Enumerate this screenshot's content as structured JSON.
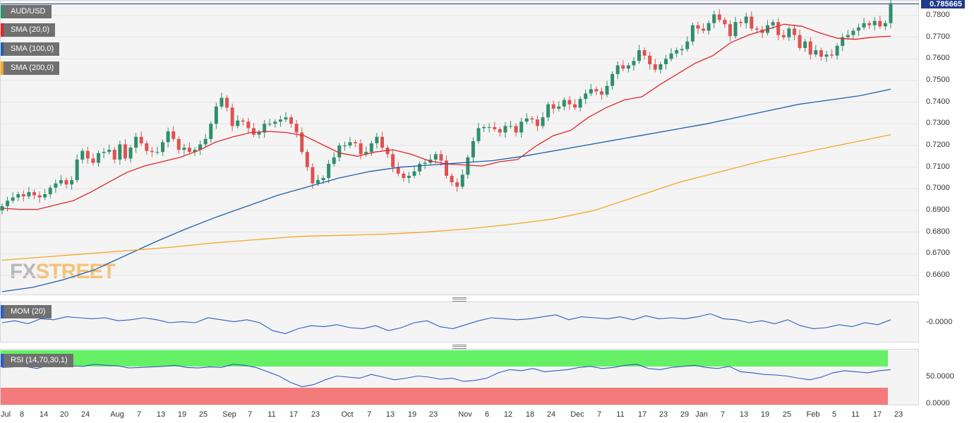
{
  "legend": {
    "symbol": "AUD/USD",
    "sma20": "SMA (20,0)",
    "sma100": "SMA (100,0)",
    "sma200": "SMA (200,0)",
    "mom": "MOM (20)",
    "rsi": "RSI (14,70,30,1)"
  },
  "watermark": {
    "part1": "FX",
    "part2": "STREET"
  },
  "last_price": "0.785665",
  "colors": {
    "up": "#2f8f6b",
    "down": "#e05151",
    "sma20": "#e4242b",
    "sma100": "#1f5fae",
    "sma200": "#f5a623",
    "mom": "#2c5cc5",
    "rsi": "#2c5cc5",
    "rsi_overbought": "#66f066",
    "rsi_oversold": "#f47b7b",
    "price_line": "#1e3a8a"
  },
  "y_ticks": [
    "0.7800",
    "0.7700",
    "0.7600",
    "0.7500",
    "0.7400",
    "0.7300",
    "0.7200",
    "0.7100",
    "0.7000",
    "0.6900",
    "0.6800",
    "0.6700",
    "0.6600"
  ],
  "mom_ticks": [
    "-0.0000"
  ],
  "rsi_ticks": [
    "50.0000",
    "0.0000"
  ],
  "x_ticks": [
    "Jul",
    "8",
    "14",
    "20",
    "24",
    "Aug",
    "7",
    "13",
    "19",
    "25",
    "Sep",
    "7",
    "11",
    "17",
    "23",
    "Oct",
    "7",
    "13",
    "19",
    "23",
    "Nov",
    "6",
    "12",
    "18",
    "24",
    "Dec",
    "7",
    "11",
    "17",
    "23",
    "29",
    "Jan",
    "7",
    "13",
    "19",
    "25",
    "Feb",
    "5",
    "11",
    "17",
    "23"
  ],
  "chart_data": {
    "type": "line",
    "title": "AUD/USD",
    "y_range": [
      0.652,
      0.7857
    ],
    "rsi_levels": {
      "overbought": 70,
      "oversold": 30
    },
    "series": [
      {
        "name": "AUD/USD",
        "values": [
          0.692,
          0.6945,
          0.696,
          0.6975,
          0.6965,
          0.6985,
          0.697,
          0.696,
          0.6975,
          0.7005,
          0.7025,
          0.704,
          0.702,
          0.704,
          0.7135,
          0.7175,
          0.714,
          0.712,
          0.7165,
          0.717,
          0.718,
          0.7135,
          0.7205,
          0.714,
          0.719,
          0.724,
          0.721,
          0.7175,
          0.717,
          0.717,
          0.7215,
          0.7265,
          0.723,
          0.718,
          0.719,
          0.717,
          0.718,
          0.7205,
          0.723,
          0.73,
          0.738,
          0.742,
          0.7375,
          0.729,
          0.7315,
          0.731,
          0.728,
          0.725,
          0.726,
          0.73,
          0.73,
          0.731,
          0.732,
          0.733,
          0.73,
          0.726,
          0.717,
          0.71,
          0.7025,
          0.704,
          0.705,
          0.7115,
          0.7145,
          0.72,
          0.72,
          0.7215,
          0.721,
          0.716,
          0.717,
          0.721,
          0.724,
          0.719,
          0.716,
          0.71,
          0.707,
          0.705,
          0.706,
          0.708,
          0.7115,
          0.712,
          0.7135,
          0.716,
          0.713,
          0.706,
          0.703,
          0.701,
          0.7065,
          0.7145,
          0.722,
          0.728,
          0.7285,
          0.7285,
          0.7275,
          0.726,
          0.729,
          0.729,
          0.726,
          0.731,
          0.7325,
          0.732,
          0.729,
          0.733,
          0.739,
          0.737,
          0.738,
          0.741,
          0.739,
          0.7375,
          0.7415,
          0.744,
          0.746,
          0.745,
          0.7435,
          0.7475,
          0.753,
          0.757,
          0.7555,
          0.757,
          0.759,
          0.764,
          0.7615,
          0.7575,
          0.755,
          0.7575,
          0.76,
          0.7625,
          0.764,
          0.7645,
          0.768,
          0.7755,
          0.774,
          0.773,
          0.7765,
          0.7805,
          0.778,
          0.776,
          0.7705,
          0.777,
          0.7765,
          0.7795,
          0.774,
          0.7735,
          0.772,
          0.7755,
          0.777,
          0.771,
          0.77,
          0.774,
          0.771,
          0.765,
          0.768,
          0.762,
          0.764,
          0.761,
          0.762,
          0.7615,
          0.766,
          0.77,
          0.771,
          0.773,
          0.7745,
          0.7765,
          0.7755,
          0.7775,
          0.775,
          0.7765,
          0.7857
        ]
      },
      {
        "name": "SMA (20,0)",
        "values": [
          0.691,
          0.6905,
          0.6905,
          0.6925,
          0.6945,
          0.6985,
          0.703,
          0.7075,
          0.7105,
          0.7125,
          0.7145,
          0.7175,
          0.7215,
          0.724,
          0.726,
          0.7265,
          0.726,
          0.7245,
          0.7205,
          0.7165,
          0.715,
          0.717,
          0.718,
          0.716,
          0.713,
          0.7115,
          0.711,
          0.7105,
          0.7125,
          0.7135,
          0.7195,
          0.7245,
          0.727,
          0.733,
          0.7375,
          0.741,
          0.7425,
          0.748,
          0.753,
          0.758,
          0.7615,
          0.7675,
          0.771,
          0.7735,
          0.776,
          0.775,
          0.772,
          0.7695,
          0.769,
          0.77,
          0.7705
        ]
      },
      {
        "name": "SMA (100,0)",
        "values": [
          0.6525,
          0.6545,
          0.658,
          0.6625,
          0.669,
          0.6755,
          0.6815,
          0.687,
          0.692,
          0.697,
          0.701,
          0.705,
          0.708,
          0.71,
          0.711,
          0.712,
          0.713,
          0.715,
          0.7175,
          0.72,
          0.7225,
          0.725,
          0.7275,
          0.73,
          0.733,
          0.736,
          0.739,
          0.741,
          0.743,
          0.746
        ]
      },
      {
        "name": "SMA (200,0)",
        "values": [
          0.667,
          0.6685,
          0.67,
          0.6715,
          0.673,
          0.675,
          0.6765,
          0.678,
          0.6785,
          0.679,
          0.68,
          0.6815,
          0.6835,
          0.686,
          0.69,
          0.6965,
          0.703,
          0.708,
          0.713,
          0.717,
          0.721,
          0.725
        ]
      },
      {
        "name": "MOM (20)",
        "values": [
          0.0,
          0.2,
          -0.1,
          0.4,
          0.3,
          0.6,
          0.5,
          0.4,
          0.5,
          0.2,
          0.3,
          0.5,
          0.3,
          0.0,
          0.1,
          0.0,
          0.5,
          0.3,
          0.1,
          0.3,
          0.0,
          -0.8,
          -1.1,
          -0.6,
          -0.3,
          -0.4,
          -0.2,
          -0.5,
          -0.6,
          -0.3,
          -0.8,
          -0.5,
          0.0,
          0.2,
          -0.4,
          -0.6,
          -0.2,
          0.2,
          0.5,
          0.4,
          0.3,
          0.4,
          0.6,
          0.8,
          0.3,
          0.6,
          0.5,
          0.4,
          0.6,
          0.3,
          0.7,
          0.4,
          0.5,
          0.4,
          0.6,
          0.9,
          0.4,
          0.3,
          0.0,
          0.2,
          -0.1,
          0.3,
          -0.3,
          -0.6,
          -0.5,
          -0.2,
          -0.4,
          0.0,
          -0.2,
          0.3
        ]
      },
      {
        "name": "RSI (14,70,30,1)",
        "values": [
          68,
          69,
          70,
          66,
          72,
          70,
          71,
          70,
          74,
          72,
          71,
          67,
          68,
          69,
          70,
          72,
          68,
          67,
          69,
          68,
          74,
          72,
          68,
          60,
          52,
          40,
          32,
          36,
          45,
          52,
          50,
          48,
          55,
          50,
          45,
          48,
          52,
          50,
          46,
          48,
          42,
          44,
          48,
          58,
          64,
          62,
          66,
          60,
          62,
          64,
          68,
          70,
          66,
          68,
          72,
          74,
          66,
          64,
          68,
          70,
          72,
          68,
          66,
          70,
          60,
          58,
          55,
          54,
          52,
          48,
          45,
          50,
          58,
          62,
          60,
          58,
          62,
          64
        ]
      }
    ]
  }
}
